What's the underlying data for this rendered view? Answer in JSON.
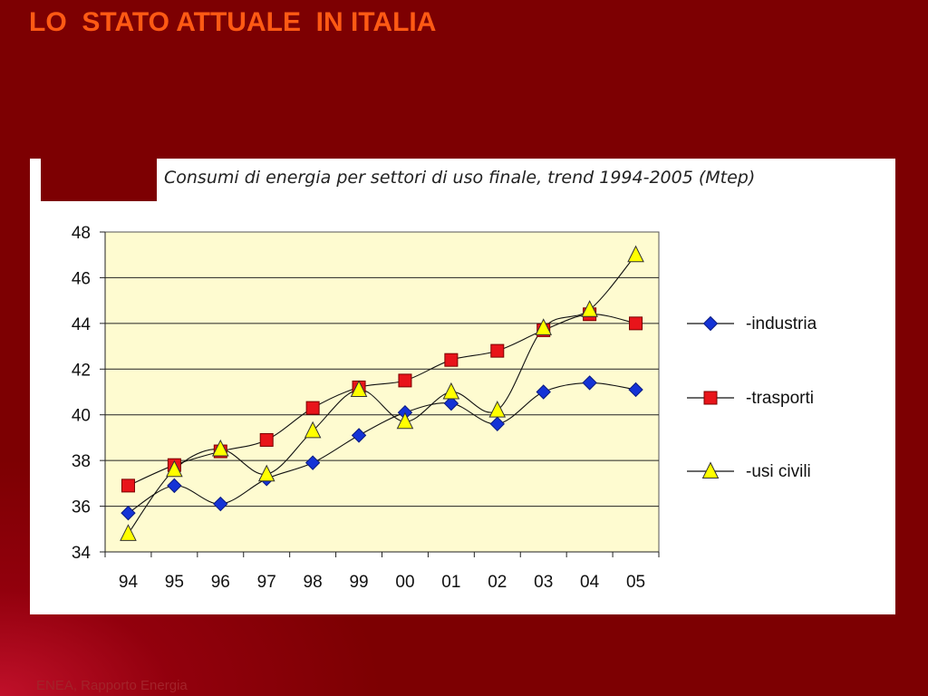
{
  "slide": {
    "title": "LO  STATO ATTUALE  IN ITALIA",
    "footer": "ENEA, Rapporto Energia"
  },
  "colors": {
    "background": "#7d0002",
    "title": "#ff5a14",
    "plot_area": "#fefbd0",
    "industria": "#1433d6",
    "trasporti": "#e8141a",
    "usi_civili": "#ffff00"
  },
  "chart_data": {
    "type": "line",
    "title": "Consumi di energia per settori di uso finale, trend 1994-2005 (Mtep)",
    "xlabel": "",
    "ylabel": "",
    "categories": [
      "94",
      "95",
      "96",
      "97",
      "98",
      "99",
      "00",
      "01",
      "02",
      "03",
      "04",
      "05"
    ],
    "ylim": [
      34,
      48
    ],
    "yticks": [
      "34",
      "36",
      "38",
      "40",
      "42",
      "44",
      "46",
      "48"
    ],
    "grid": "horizontal",
    "legend_position": "right",
    "series": [
      {
        "name": "-industria",
        "marker": "diamond",
        "color": "#1433d6",
        "values": [
          35.7,
          36.9,
          36.1,
          37.2,
          37.9,
          39.1,
          40.1,
          40.5,
          39.6,
          41.0,
          41.4,
          41.1
        ]
      },
      {
        "name": "-trasporti",
        "marker": "square",
        "color": "#e8141a",
        "values": [
          36.9,
          37.8,
          38.4,
          38.9,
          40.3,
          41.2,
          41.5,
          42.4,
          42.8,
          43.7,
          44.4,
          44.0
        ]
      },
      {
        "name": "-usi civili",
        "marker": "triangle",
        "color": "#ffff00",
        "values": [
          34.8,
          37.6,
          38.5,
          37.4,
          39.3,
          41.1,
          39.7,
          41.0,
          40.2,
          43.8,
          44.6,
          47.0
        ]
      }
    ]
  }
}
